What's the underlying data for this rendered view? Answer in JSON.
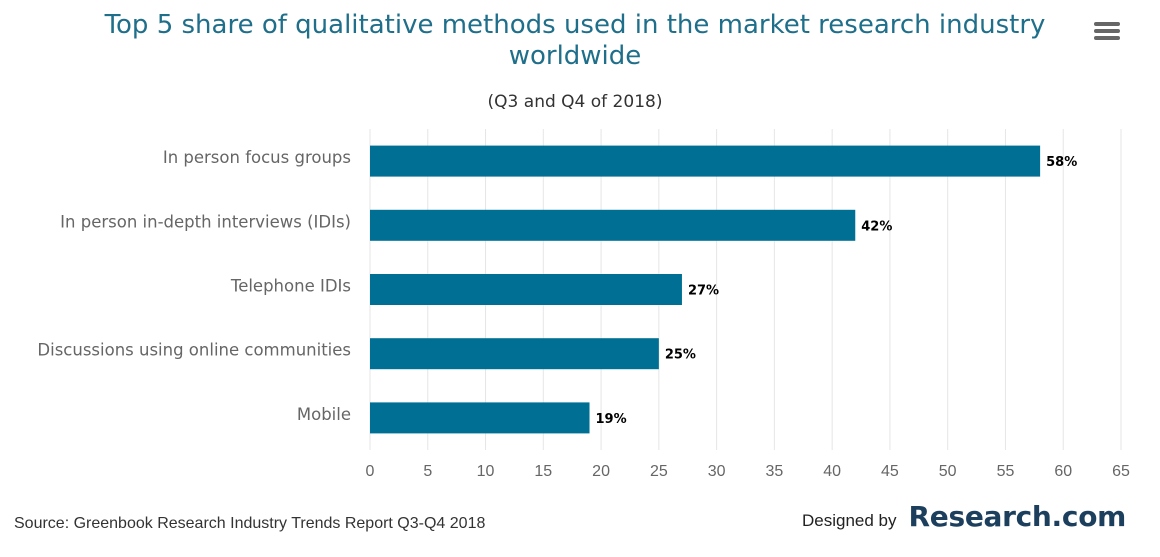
{
  "header": {
    "title_line1": "Top 5 share of qualitative methods used in the market research industry",
    "title_line2": "worldwide",
    "subtitle": "(Q3 and Q4 of 2018)"
  },
  "menu": {
    "icon": "hamburger-menu-icon"
  },
  "footer": {
    "source": "Source: Greenbook Research Industry Trends Report Q3-Q4 2018",
    "designed_by": "Designed by",
    "brand": "Research.com"
  },
  "colors": {
    "bar": "#006f94",
    "grid": "#e6e6e6",
    "title": "#1f6f8b",
    "text": "#666666"
  },
  "chart_data": {
    "type": "bar",
    "orientation": "horizontal",
    "title": "Top 5 share of qualitative methods used in the market research industry worldwide",
    "subtitle": "(Q3 and Q4 of 2018)",
    "categories": [
      "In person focus groups",
      "In person in-depth interviews (IDIs)",
      "Telephone IDIs",
      "Discussions using online communities",
      "Mobile"
    ],
    "values": [
      58,
      42,
      27,
      25,
      19
    ],
    "data_labels": [
      "58%",
      "42%",
      "27%",
      "25%",
      "19%"
    ],
    "xlim": [
      0,
      65
    ],
    "ticks": [
      0,
      5,
      10,
      15,
      20,
      25,
      30,
      35,
      40,
      45,
      50,
      55,
      60,
      65
    ],
    "grid": true,
    "legend": "none"
  }
}
